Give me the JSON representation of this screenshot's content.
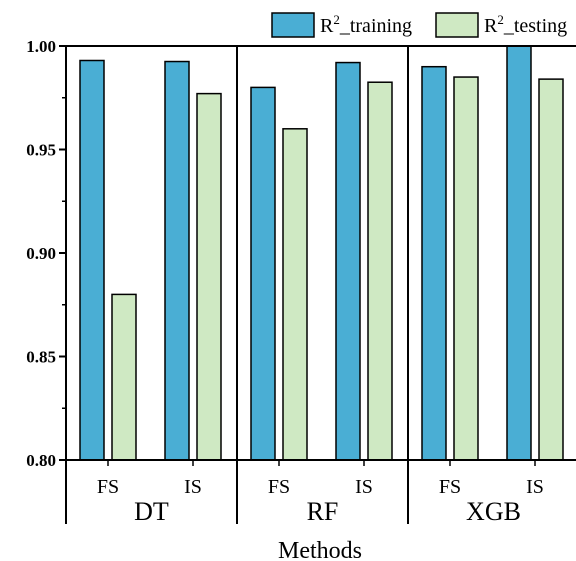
{
  "chart_data": {
    "type": "bar",
    "xlabel": "Methods",
    "ylabel": "",
    "ylim": [
      0.8,
      1.0
    ],
    "yticks": [
      "0.80",
      "0.85",
      "0.90",
      "0.95",
      "1.00"
    ],
    "yticks_values": [
      0.8,
      0.85,
      0.9,
      0.95,
      1.0
    ],
    "groups": [
      {
        "label": "DT",
        "categories": [
          "FS",
          "IS"
        ]
      },
      {
        "label": "RF",
        "categories": [
          "FS",
          "IS"
        ]
      },
      {
        "label": "XGB",
        "categories": [
          "FS",
          "IS"
        ]
      }
    ],
    "series": [
      {
        "name_base": "R",
        "name_sup": "2",
        "name_rest": "_training",
        "color": "#4aaed4",
        "values": [
          0.993,
          0.9925,
          0.98,
          0.992,
          0.99,
          1.0
        ]
      },
      {
        "name_base": "R",
        "name_sup": "2",
        "name_rest": "_testing",
        "color": "#cfe9c3",
        "values": [
          0.88,
          0.977,
          0.96,
          0.9825,
          0.985,
          0.984
        ]
      }
    ],
    "legend_position": "top-right",
    "grid": false
  }
}
